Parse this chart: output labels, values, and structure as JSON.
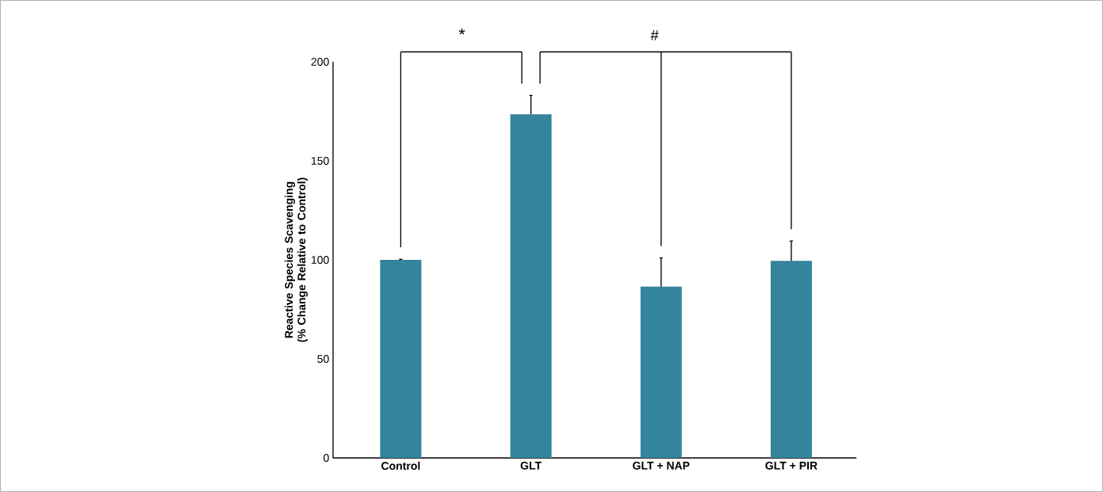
{
  "chart_data": {
    "type": "bar",
    "ylabel": "Reactive Species Scavenging (% Change  Relative to Control)",
    "categories": [
      "Control",
      "GLT",
      "GLT + NAP",
      "GLT + PIR"
    ],
    "values": [
      100,
      173.5,
      86.5,
      99.5
    ],
    "errors": [
      0.3,
      9.5,
      14.5,
      10
    ],
    "color": "#33849c",
    "ylim": [
      0,
      200
    ],
    "yticks": [
      0,
      50,
      100,
      150,
      200
    ],
    "grid": false,
    "annotations": [
      "*",
      "#"
    ]
  }
}
